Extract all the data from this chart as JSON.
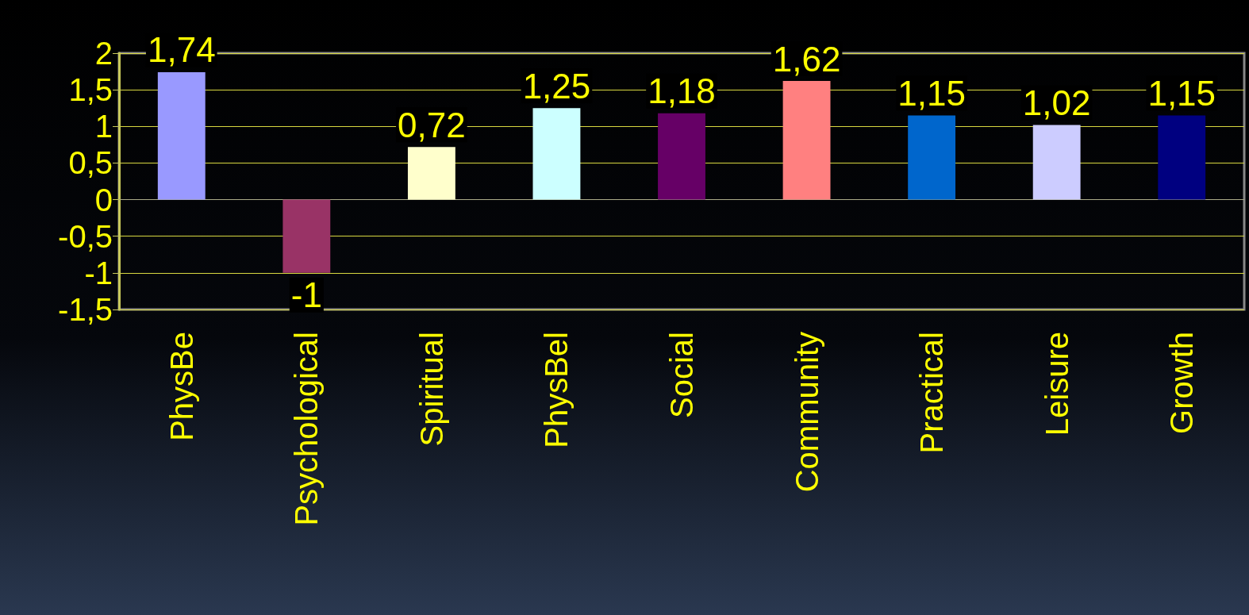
{
  "chart_data": {
    "type": "bar",
    "categories": [
      "PhysBe",
      "Psychological",
      "Spiritual",
      "PhysBel",
      "Social",
      "Community",
      "Practical",
      "Leisure",
      "Growth"
    ],
    "values": [
      1.74,
      -1,
      0.72,
      1.25,
      1.18,
      1.62,
      1.15,
      1.02,
      1.15
    ],
    "value_labels": [
      "1,74",
      "-1",
      "0,72",
      "1,25",
      "1,18",
      "1,62",
      "1,15",
      "1,02",
      "1,15"
    ],
    "colors": [
      "#9999ff",
      "#993366",
      "#ffffcc",
      "#ccffff",
      "#660066",
      "#ff8080",
      "#0066cc",
      "#ccccff",
      "#000080"
    ],
    "ylim": [
      -1.5,
      2
    ],
    "yticks": [
      {
        "value": -1.5,
        "label": "-1,5"
      },
      {
        "value": -1,
        "label": "-1"
      },
      {
        "value": -0.5,
        "label": "-0,5"
      },
      {
        "value": 0,
        "label": "0"
      },
      {
        "value": 0.5,
        "label": "0,5"
      },
      {
        "value": 1,
        "label": "1"
      },
      {
        "value": 1.5,
        "label": "1,5"
      },
      {
        "value": 2,
        "label": "2"
      }
    ],
    "grid": "y"
  }
}
